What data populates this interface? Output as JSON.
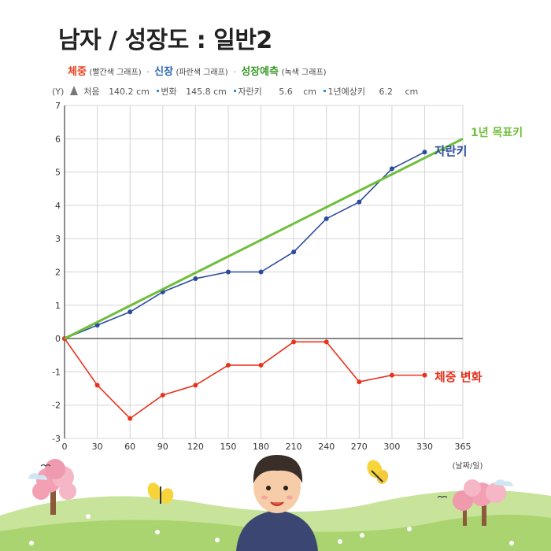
{
  "title": "남자 / 성장도 : 일반2",
  "legend": {
    "weight_label": "체중",
    "weight_sub": "(빨간색 그래프)",
    "height_label": "신장",
    "height_sub": "(파란색 그래프)",
    "goal_label": "성장예측",
    "goal_sub": "(녹색 그래프)",
    "separator": "·"
  },
  "info": {
    "y_marker": "(Y)",
    "start_label": "처음",
    "start_value": "140.2",
    "start_unit": "cm",
    "change_label": "변화",
    "change_value": "145.8",
    "change_unit": "cm",
    "growth_label": "자란키",
    "growth_value": "5.6",
    "growth_unit": "cm",
    "predict_label": "1년예상키",
    "predict_value": "6.2",
    "predict_unit": "cm"
  },
  "colors": {
    "weight": "#e8321c",
    "height": "#2b4b9c",
    "goal": "#6fbe3a",
    "grid": "#d5d5d5",
    "axis": "#444444"
  },
  "chart_data": {
    "type": "line",
    "x_ticks": [
      0,
      30,
      60,
      90,
      120,
      150,
      180,
      210,
      240,
      270,
      300,
      330,
      365
    ],
    "y_ticks": [
      -3,
      -2,
      -1,
      0,
      1,
      2,
      3,
      4,
      5,
      6,
      7
    ],
    "xlim": [
      0,
      365
    ],
    "ylim": [
      -3,
      7
    ],
    "x_unit_label": "(날짜/일)",
    "grid": true,
    "series": [
      {
        "name": "자란키",
        "color": "#2b4b9c",
        "markers": true,
        "x": [
          0,
          30,
          60,
          90,
          120,
          150,
          180,
          210,
          240,
          270,
          300,
          330
        ],
        "y": [
          0,
          0.4,
          0.8,
          1.4,
          1.8,
          2.0,
          2.0,
          2.6,
          3.6,
          4.1,
          5.1,
          5.6
        ]
      },
      {
        "name": "체중 변화",
        "color": "#e8321c",
        "markers": true,
        "x": [
          0,
          30,
          60,
          90,
          120,
          150,
          180,
          210,
          240,
          270,
          300,
          330
        ],
        "y": [
          0,
          -1.4,
          -2.4,
          -1.7,
          -1.4,
          -0.8,
          -0.8,
          -0.1,
          -0.1,
          -1.3,
          -1.1,
          -1.1
        ]
      },
      {
        "name": "1년 목표키",
        "color": "#6fbe3a",
        "markers": false,
        "x": [
          0,
          365
        ],
        "y": [
          0,
          6.0
        ]
      }
    ]
  }
}
